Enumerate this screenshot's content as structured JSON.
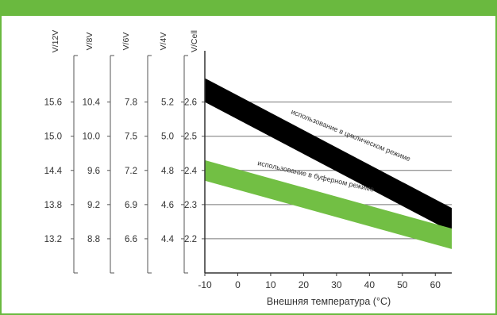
{
  "chart_data": {
    "type": "area",
    "xlabel": "Внешняя температура  (°C)",
    "x_ticks": [
      -10,
      0,
      10,
      20,
      30,
      40,
      50,
      60
    ],
    "xlim": [
      -10,
      65
    ],
    "ylim": [
      2.1,
      2.75
    ],
    "gridlines_v_per_cell": [
      2.2,
      2.3,
      2.4,
      2.5,
      2.6
    ],
    "scales": [
      {
        "label": "V/12V",
        "ticks": [
          "15.6",
          "15.0",
          "14.4",
          "13.8",
          "13.2"
        ],
        "values": [
          2.6,
          2.5,
          2.4,
          2.3,
          2.2
        ]
      },
      {
        "label": "V/8V",
        "ticks": [
          "10.4",
          "10.0",
          "9.6",
          "9.2",
          "8.8"
        ],
        "values": [
          2.6,
          2.5,
          2.4,
          2.3,
          2.2
        ]
      },
      {
        "label": "V/6V",
        "ticks": [
          "7.8",
          "7.5",
          "7.2",
          "6.9",
          "6.6"
        ],
        "values": [
          2.6,
          2.5,
          2.4,
          2.3,
          2.2
        ]
      },
      {
        "label": "V/4V",
        "ticks": [
          "5.2",
          "5.0",
          "4.8",
          "4.6",
          "4.4"
        ],
        "values": [
          2.6,
          2.5,
          2.4,
          2.3,
          2.2
        ]
      },
      {
        "label": "V/Cell",
        "ticks": [
          "2.6",
          "2.5",
          "2.4",
          "2.3",
          "2.2"
        ],
        "values": [
          2.6,
          2.5,
          2.4,
          2.3,
          2.2
        ]
      }
    ],
    "series": [
      {
        "name": "использование в циклическом режиме",
        "color": "#000000",
        "x": [
          -10,
          65
        ],
        "upper": [
          2.67,
          2.29
        ],
        "lower": [
          2.6,
          2.22
        ]
      },
      {
        "name": "использование в буферном режиме",
        "color": "#72bf44",
        "x": [
          -10,
          65
        ],
        "upper": [
          2.43,
          2.23
        ],
        "lower": [
          2.37,
          2.17
        ]
      }
    ]
  }
}
